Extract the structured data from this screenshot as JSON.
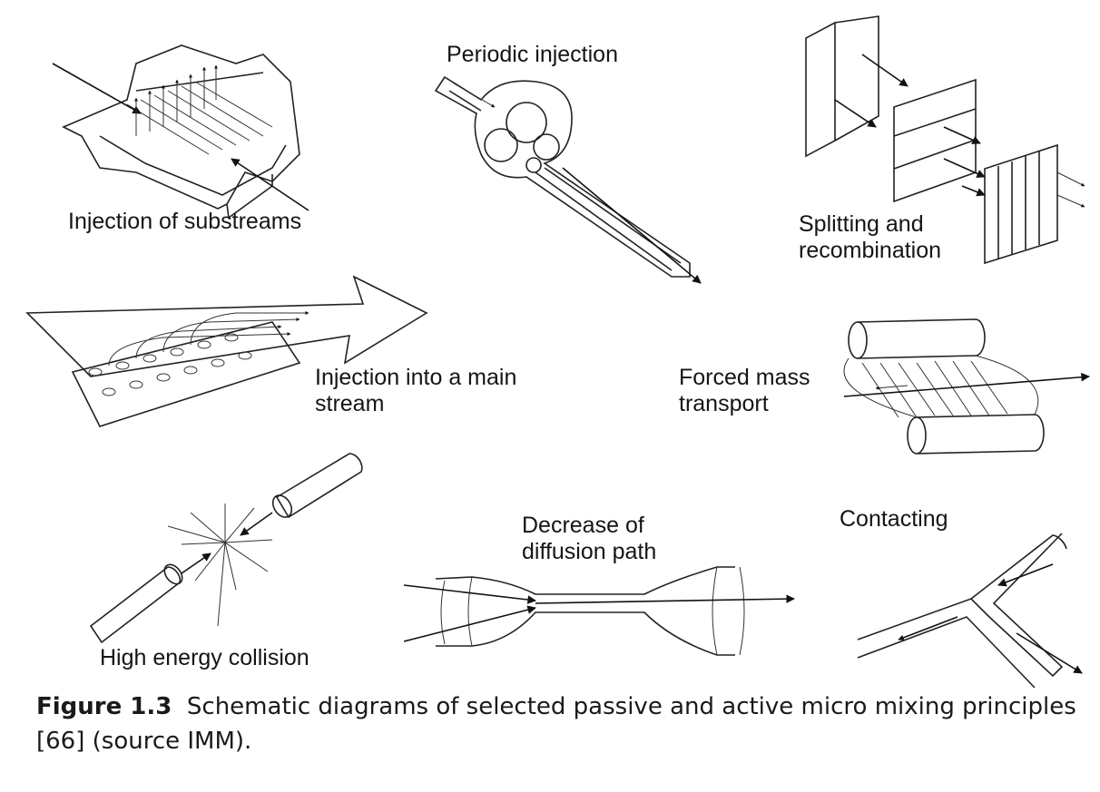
{
  "panels": [
    {
      "id": "injection-of-substreams",
      "lines": [
        "Injection of substreams"
      ]
    },
    {
      "id": "periodic-injection",
      "lines": [
        "Periodic injection"
      ]
    },
    {
      "id": "splitting-and-recombination",
      "lines": [
        "Splitting and",
        "recombination"
      ]
    },
    {
      "id": "injection-into-main-stream",
      "lines": [
        "Injection into a main",
        "stream"
      ]
    },
    {
      "id": "forced-mass-transport",
      "lines": [
        "Forced mass",
        "transport"
      ]
    },
    {
      "id": "high-energy-collision",
      "lines": [
        "High energy collision"
      ]
    },
    {
      "id": "decrease-of-diffusion-path",
      "lines": [
        "Decrease of",
        "diffusion path"
      ]
    },
    {
      "id": "contacting",
      "lines": [
        "Contacting"
      ]
    }
  ],
  "caption": {
    "label": "Figure 1.3",
    "text": "Schematic diagrams of selected passive and active micro mixing principles [66] (source IMM)."
  }
}
